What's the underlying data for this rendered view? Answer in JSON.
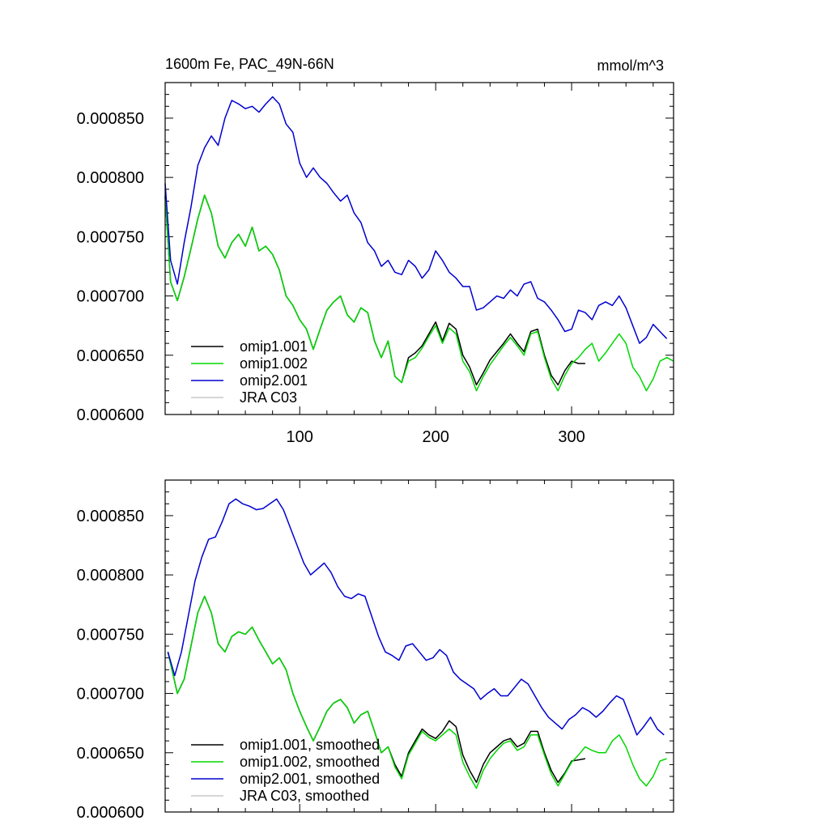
{
  "chart_data": [
    {
      "type": "line",
      "title": "1600m Fe, PAC_49N-66N",
      "units": "mmol/m^3",
      "xlim": [
        1,
        375
      ],
      "ylim": [
        0.0006,
        0.00088
      ],
      "xticks": [
        100,
        200,
        300
      ],
      "yticks": [
        "0.000600",
        "0.000650",
        "0.000700",
        "0.000750",
        "0.000800",
        "0.000850"
      ],
      "legend_position": "bottom-left",
      "series": [
        {
          "name": "omip1.001",
          "color": "#000000",
          "x": [
            1,
            5,
            10,
            15,
            20,
            25,
            30,
            35,
            40,
            45,
            50,
            55,
            60,
            65,
            70,
            75,
            80,
            85,
            90,
            95,
            100,
            105,
            110,
            115,
            120,
            125,
            130,
            135,
            140,
            145,
            150,
            155,
            160,
            165,
            170,
            175,
            180,
            185,
            190,
            195,
            200,
            205,
            210,
            215,
            220,
            225,
            230,
            235,
            240,
            245,
            250,
            255,
            260,
            265,
            270,
            275,
            280,
            285,
            290,
            295,
            300,
            305,
            310
          ],
          "values": [
            0.000784,
            0.000712,
            0.000696,
            0.000716,
            0.00074,
            0.000765,
            0.000785,
            0.00077,
            0.000742,
            0.000732,
            0.000745,
            0.000752,
            0.000742,
            0.000758,
            0.000738,
            0.000742,
            0.000735,
            0.000722,
            0.0007,
            0.000692,
            0.00068,
            0.000672,
            0.000655,
            0.000672,
            0.000688,
            0.000695,
            0.0007,
            0.000684,
            0.000678,
            0.00069,
            0.000686,
            0.000662,
            0.000648,
            0.000662,
            0.000632,
            0.000627,
            0.000648,
            0.000652,
            0.000658,
            0.000668,
            0.000678,
            0.000662,
            0.000677,
            0.000672,
            0.00065,
            0.00064,
            0.000625,
            0.000635,
            0.000646,
            0.000653,
            0.00066,
            0.000668,
            0.00066,
            0.000653,
            0.00067,
            0.000672,
            0.00065,
            0.000633,
            0.000625,
            0.000637,
            0.000645,
            0.000643,
            0.000643
          ]
        },
        {
          "name": "omip1.002",
          "color": "#00d800",
          "x": [
            1,
            5,
            10,
            15,
            20,
            25,
            30,
            35,
            40,
            45,
            50,
            55,
            60,
            65,
            70,
            75,
            80,
            85,
            90,
            95,
            100,
            105,
            110,
            115,
            120,
            125,
            130,
            135,
            140,
            145,
            150,
            155,
            160,
            165,
            170,
            175,
            180,
            185,
            190,
            195,
            200,
            205,
            210,
            215,
            220,
            225,
            230,
            235,
            240,
            245,
            250,
            255,
            260,
            265,
            270,
            275,
            280,
            285,
            290,
            295,
            300,
            305,
            310,
            315,
            320,
            325,
            330,
            335,
            340,
            345,
            350,
            355,
            360,
            365,
            370,
            375
          ],
          "values": [
            0.000784,
            0.000712,
            0.000696,
            0.000716,
            0.00074,
            0.000765,
            0.000785,
            0.00077,
            0.000742,
            0.000732,
            0.000745,
            0.000752,
            0.000742,
            0.000758,
            0.000738,
            0.000742,
            0.000735,
            0.000722,
            0.0007,
            0.000692,
            0.00068,
            0.000672,
            0.000655,
            0.000672,
            0.000688,
            0.000695,
            0.0007,
            0.000684,
            0.000678,
            0.00069,
            0.000686,
            0.000662,
            0.000648,
            0.000662,
            0.000632,
            0.000627,
            0.000645,
            0.000648,
            0.000656,
            0.000666,
            0.000675,
            0.00066,
            0.000673,
            0.000668,
            0.000645,
            0.000636,
            0.00062,
            0.000632,
            0.000642,
            0.00065,
            0.000658,
            0.000665,
            0.000658,
            0.00065,
            0.000668,
            0.00067,
            0.000648,
            0.00063,
            0.00062,
            0.000633,
            0.000643,
            0.000648,
            0.000655,
            0.00066,
            0.000645,
            0.000652,
            0.00066,
            0.000668,
            0.00066,
            0.00064,
            0.000632,
            0.00062,
            0.00063,
            0.000645,
            0.000648,
            0.000645
          ]
        },
        {
          "name": "omip2.001",
          "color": "#0000d0",
          "x": [
            1,
            5,
            10,
            15,
            20,
            25,
            30,
            35,
            40,
            45,
            50,
            55,
            60,
            65,
            70,
            75,
            80,
            85,
            90,
            95,
            100,
            105,
            110,
            115,
            120,
            125,
            130,
            135,
            140,
            145,
            150,
            155,
            160,
            165,
            170,
            175,
            180,
            185,
            190,
            195,
            200,
            205,
            210,
            215,
            220,
            225,
            230,
            235,
            240,
            245,
            250,
            255,
            260,
            265,
            270,
            275,
            280,
            285,
            290,
            295,
            300,
            305,
            310,
            315,
            320,
            325,
            330,
            335,
            340,
            345,
            350,
            355,
            360,
            365,
            370
          ],
          "values": [
            0.000795,
            0.00073,
            0.00071,
            0.000745,
            0.000775,
            0.00081,
            0.000825,
            0.000835,
            0.000827,
            0.00085,
            0.000865,
            0.000862,
            0.000858,
            0.00086,
            0.000855,
            0.000862,
            0.000868,
            0.000862,
            0.000845,
            0.000838,
            0.000812,
            0.0008,
            0.000808,
            0.0008,
            0.000795,
            0.000787,
            0.00078,
            0.000785,
            0.00077,
            0.000762,
            0.000745,
            0.000738,
            0.000725,
            0.00073,
            0.00072,
            0.000718,
            0.00073,
            0.000725,
            0.000715,
            0.000722,
            0.000738,
            0.00073,
            0.00072,
            0.000715,
            0.000708,
            0.000708,
            0.000688,
            0.00069,
            0.000695,
            0.0007,
            0.000698,
            0.000705,
            0.0007,
            0.00071,
            0.000712,
            0.000698,
            0.000695,
            0.000688,
            0.00068,
            0.00067,
            0.000672,
            0.000688,
            0.000686,
            0.00068,
            0.000692,
            0.000695,
            0.000692,
            0.0007,
            0.00069,
            0.000675,
            0.00066,
            0.000665,
            0.000676,
            0.00067,
            0.000664
          ]
        },
        {
          "name": "JRA C03",
          "color": "#c8c8c8",
          "x": [],
          "values": []
        }
      ]
    },
    {
      "type": "line",
      "title": "",
      "units": "",
      "xlim": [
        1,
        375
      ],
      "ylim": [
        0.0006,
        0.00088
      ],
      "xticks": [
        100,
        200,
        300
      ],
      "yticks": [
        "0.000600",
        "0.000650",
        "0.000700",
        "0.000750",
        "0.000800",
        "0.000850"
      ],
      "legend_position": "bottom-left",
      "series": [
        {
          "name": "omip1.001, smoothed",
          "color": "#000000",
          "x": [
            3,
            10,
            15,
            20,
            25,
            30,
            35,
            40,
            45,
            50,
            55,
            60,
            65,
            70,
            75,
            80,
            85,
            90,
            95,
            100,
            105,
            110,
            115,
            120,
            125,
            130,
            135,
            140,
            145,
            150,
            155,
            160,
            165,
            170,
            175,
            180,
            185,
            190,
            195,
            200,
            205,
            210,
            215,
            220,
            225,
            230,
            235,
            240,
            245,
            250,
            255,
            260,
            265,
            270,
            275,
            280,
            285,
            290,
            295,
            300,
            305,
            310
          ],
          "values": [
            0.000735,
            0.0007,
            0.000712,
            0.00074,
            0.000768,
            0.000782,
            0.000768,
            0.000742,
            0.000735,
            0.000748,
            0.000752,
            0.00075,
            0.000756,
            0.000745,
            0.000735,
            0.000725,
            0.00073,
            0.00072,
            0.0007,
            0.000685,
            0.000672,
            0.00066,
            0.000672,
            0.000685,
            0.000692,
            0.000695,
            0.000688,
            0.000675,
            0.000682,
            0.000685,
            0.000668,
            0.00065,
            0.000655,
            0.00064,
            0.00063,
            0.00065,
            0.00066,
            0.00067,
            0.000665,
            0.000662,
            0.000668,
            0.000677,
            0.000672,
            0.000648,
            0.000635,
            0.000625,
            0.00064,
            0.00065,
            0.000655,
            0.00066,
            0.000662,
            0.000655,
            0.000658,
            0.000668,
            0.000668,
            0.00065,
            0.000635,
            0.000625,
            0.000633,
            0.000643,
            0.000644,
            0.000645
          ]
        },
        {
          "name": "omip1.002, smoothed",
          "color": "#00d800",
          "x": [
            3,
            10,
            15,
            20,
            25,
            30,
            35,
            40,
            45,
            50,
            55,
            60,
            65,
            70,
            75,
            80,
            85,
            90,
            95,
            100,
            105,
            110,
            115,
            120,
            125,
            130,
            135,
            140,
            145,
            150,
            155,
            160,
            165,
            170,
            175,
            180,
            185,
            190,
            195,
            200,
            205,
            210,
            215,
            220,
            225,
            230,
            235,
            240,
            245,
            250,
            255,
            260,
            265,
            270,
            275,
            280,
            285,
            290,
            295,
            300,
            305,
            310,
            315,
            320,
            325,
            330,
            335,
            340,
            345,
            350,
            355,
            360,
            365,
            370
          ],
          "values": [
            0.000735,
            0.0007,
            0.000712,
            0.00074,
            0.000768,
            0.000782,
            0.000768,
            0.000742,
            0.000735,
            0.000748,
            0.000752,
            0.00075,
            0.000756,
            0.000745,
            0.000735,
            0.000725,
            0.00073,
            0.00072,
            0.0007,
            0.000685,
            0.000672,
            0.00066,
            0.000672,
            0.000685,
            0.000692,
            0.000695,
            0.000688,
            0.000675,
            0.000682,
            0.000685,
            0.000668,
            0.00065,
            0.000655,
            0.000638,
            0.000628,
            0.000648,
            0.000658,
            0.000668,
            0.000663,
            0.00066,
            0.000665,
            0.00067,
            0.000665,
            0.000642,
            0.00063,
            0.00062,
            0.000635,
            0.000645,
            0.000652,
            0.000658,
            0.00066,
            0.000652,
            0.000655,
            0.000665,
            0.000665,
            0.000648,
            0.000632,
            0.000622,
            0.000632,
            0.000642,
            0.000648,
            0.000655,
            0.000652,
            0.00065,
            0.00065,
            0.00066,
            0.000665,
            0.000655,
            0.00064,
            0.000628,
            0.000622,
            0.00063,
            0.000643,
            0.000645
          ]
        },
        {
          "name": "omip2.001, smoothed",
          "color": "#0000d0",
          "x": [
            3,
            8,
            13,
            18,
            23,
            28,
            33,
            38,
            43,
            48,
            53,
            58,
            63,
            68,
            73,
            78,
            83,
            88,
            93,
            98,
            103,
            108,
            113,
            118,
            123,
            128,
            133,
            138,
            143,
            148,
            153,
            158,
            163,
            168,
            173,
            178,
            183,
            188,
            193,
            198,
            203,
            208,
            213,
            218,
            223,
            228,
            233,
            238,
            243,
            248,
            253,
            258,
            263,
            268,
            273,
            278,
            283,
            288,
            293,
            298,
            303,
            308,
            313,
            318,
            323,
            328,
            333,
            338,
            343,
            348,
            353,
            358,
            363,
            368
          ],
          "values": [
            0.000735,
            0.000715,
            0.000735,
            0.000765,
            0.000795,
            0.000815,
            0.00083,
            0.000832,
            0.000845,
            0.00086,
            0.000864,
            0.00086,
            0.000858,
            0.000855,
            0.000856,
            0.00086,
            0.000864,
            0.000855,
            0.00084,
            0.000825,
            0.00081,
            0.0008,
            0.000805,
            0.00081,
            0.000802,
            0.00079,
            0.000782,
            0.00078,
            0.000784,
            0.000782,
            0.000765,
            0.000748,
            0.000735,
            0.000732,
            0.000728,
            0.00074,
            0.000742,
            0.000735,
            0.000728,
            0.00073,
            0.000737,
            0.000732,
            0.000718,
            0.000712,
            0.000708,
            0.000704,
            0.000695,
            0.0007,
            0.000704,
            0.000698,
            0.000698,
            0.000705,
            0.000712,
            0.000708,
            0.000698,
            0.000688,
            0.00068,
            0.000675,
            0.00067,
            0.000678,
            0.000682,
            0.000688,
            0.000685,
            0.00068,
            0.000685,
            0.000692,
            0.000698,
            0.000695,
            0.00068,
            0.000665,
            0.000672,
            0.00068,
            0.00067,
            0.000665
          ]
        },
        {
          "name": "JRA C03, smoothed",
          "color": "#c8c8c8",
          "x": [],
          "values": []
        }
      ]
    }
  ]
}
